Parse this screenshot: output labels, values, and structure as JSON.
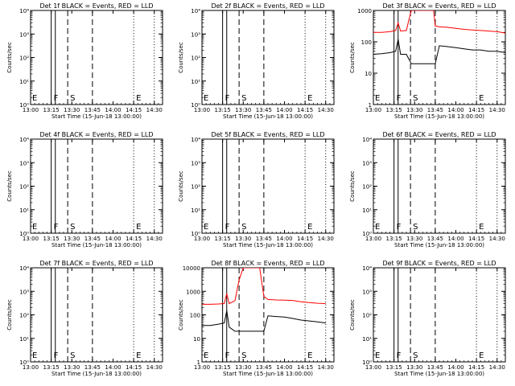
{
  "chart_data": {
    "type": "line",
    "x_tick_labels": [
      "13:00",
      "13:15",
      "13:30",
      "13:45",
      "14:00",
      "14:15",
      "14:30"
    ],
    "x_ticks_hours": [
      13.0,
      13.25,
      13.5,
      13.75,
      14.0,
      14.25,
      14.5
    ],
    "xlim_hours": [
      13.0,
      14.6
    ],
    "xlabel": "Start Time (15-Jun-18 13:00:00)",
    "ylabel": "Counts/sec",
    "y_scale": "log",
    "vertical_lines": [
      {
        "x": 13.25,
        "style": "solid",
        "label": "F"
      },
      {
        "x": 13.3,
        "style": "solid",
        "label": ""
      },
      {
        "x": 13.45,
        "style": "dashed",
        "label": "S"
      },
      {
        "x": 13.75,
        "style": "dashed",
        "label": ""
      },
      {
        "x": 14.25,
        "style": "dotted",
        "label": "E"
      },
      {
        "x": 14.5,
        "style": "dotted",
        "label": ""
      }
    ],
    "start_marker_label": "E",
    "panels": [
      {
        "title": "Det 1f BLACK = Events, RED = LLD",
        "ylim": [
          1,
          10000
        ],
        "y_tick_labels": [
          "10⁰",
          "10¹",
          "10²",
          "10³",
          "10⁴"
        ],
        "series": []
      },
      {
        "title": "Det 2f BLACK = Events, RED = LLD",
        "ylim": [
          1,
          10000
        ],
        "y_tick_labels": [
          "10⁰",
          "10¹",
          "10²",
          "10³",
          "10⁴"
        ],
        "series": []
      },
      {
        "title": "Det 3f BLACK = Events, RED = LLD",
        "ylim": [
          1,
          1000
        ],
        "y_tick_labels": [
          "1",
          "10",
          "100",
          "1000"
        ],
        "series": [
          {
            "color": "#ff0000",
            "x": [
              13.0,
              13.1,
              13.2,
              13.27,
              13.3,
              13.33,
              13.4,
              13.43,
              13.46,
              13.5,
              13.55,
              13.6,
              13.7,
              13.73,
              13.75,
              13.8,
              13.9,
              14.0,
              14.1,
              14.2,
              14.3,
              14.4,
              14.5,
              14.6
            ],
            "y": [
              200,
              200,
              210,
              230,
              400,
              220,
              230,
              500,
              1000,
              1000,
              1000,
              1000,
              1000,
              1000,
              320,
              300,
              290,
              270,
              250,
              240,
              230,
              220,
              210,
              190
            ]
          },
          {
            "color": "#000000",
            "x": [
              13.0,
              13.1,
              13.2,
              13.27,
              13.3,
              13.33,
              13.4,
              13.46,
              13.5,
              13.6,
              13.7,
              13.75,
              13.8,
              13.9,
              14.0,
              14.1,
              14.2,
              14.3,
              14.4,
              14.5,
              14.6
            ],
            "y": [
              40,
              42,
              45,
              50,
              120,
              40,
              40,
              20,
              20,
              20,
              20,
              20,
              75,
              70,
              65,
              60,
              55,
              55,
              50,
              50,
              45
            ]
          }
        ]
      },
      {
        "title": "Det 4f BLACK = Events, RED = LLD",
        "ylim": [
          1,
          10000
        ],
        "y_tick_labels": [
          "10⁰",
          "10¹",
          "10²",
          "10³",
          "10⁴"
        ],
        "series": []
      },
      {
        "title": "Det 5f BLACK = Events, RED = LLD",
        "ylim": [
          1,
          10000
        ],
        "y_tick_labels": [
          "10⁰",
          "10¹",
          "10²",
          "10³",
          "10⁴"
        ],
        "series": []
      },
      {
        "title": "Det 6f BLACK = Events, RED = LLD",
        "ylim": [
          1,
          10000
        ],
        "y_tick_labels": [
          "10⁰",
          "10¹",
          "10²",
          "10³",
          "10⁴"
        ],
        "series": []
      },
      {
        "title": "Det 7f BLACK = Events, RED = LLD",
        "ylim": [
          1,
          10000
        ],
        "y_tick_labels": [
          "10⁰",
          "10¹",
          "10²",
          "10³",
          "10⁴"
        ],
        "series": []
      },
      {
        "title": "Det 8f BLACK = Events, RED = LLD",
        "ylim": [
          1,
          10000
        ],
        "y_tick_labels": [
          "1",
          "10",
          "100",
          "1000",
          "10000"
        ],
        "series": [
          {
            "color": "#ff0000",
            "x": [
              13.0,
              13.1,
              13.2,
              13.27,
              13.3,
              13.33,
              13.4,
              13.45,
              13.5,
              13.55,
              13.6,
              13.7,
              13.75,
              13.8,
              13.9,
              14.0,
              14.1,
              14.2,
              14.3,
              14.4,
              14.5
            ],
            "y": [
              280,
              280,
              290,
              300,
              800,
              300,
              400,
              3000,
              10000,
              10000,
              10000,
              10000,
              600,
              450,
              430,
              420,
              410,
              360,
              330,
              310,
              300
            ]
          },
          {
            "color": "#000000",
            "x": [
              13.0,
              13.1,
              13.2,
              13.27,
              13.3,
              13.33,
              13.4,
              13.46,
              13.5,
              13.6,
              13.7,
              13.75,
              13.8,
              13.9,
              14.0,
              14.1,
              14.2,
              14.3,
              14.4,
              14.5
            ],
            "y": [
              35,
              35,
              40,
              45,
              150,
              30,
              20,
              20,
              20,
              20,
              20,
              20,
              90,
              85,
              80,
              70,
              60,
              55,
              50,
              45
            ]
          }
        ]
      },
      {
        "title": "Det 9f BLACK = Events, RED = LLD",
        "ylim": [
          1,
          10000
        ],
        "y_tick_labels": [
          "10⁰",
          "10¹",
          "10²",
          "10³",
          "10⁴"
        ],
        "series": []
      }
    ]
  }
}
